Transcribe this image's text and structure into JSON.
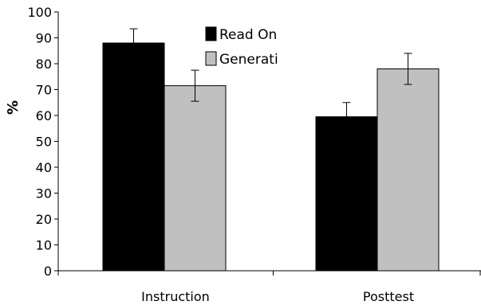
{
  "chart_data": {
    "type": "bar",
    "title": "",
    "xlabel": "",
    "ylabel": "%",
    "ylim": [
      0,
      100
    ],
    "yticks": [
      0,
      10,
      20,
      30,
      40,
      50,
      60,
      70,
      80,
      90,
      100
    ],
    "grid": false,
    "legend_position": "top-center",
    "categories": [
      "Instruction",
      "Posttest"
    ],
    "series": [
      {
        "name": "Read On",
        "color": "#000000",
        "values": [
          88,
          59.5
        ],
        "errors": [
          5.5,
          5.5
        ]
      },
      {
        "name": "Generati",
        "color": "#c0c0c0",
        "values": [
          71.5,
          78
        ],
        "errors": [
          6,
          6
        ]
      }
    ]
  }
}
